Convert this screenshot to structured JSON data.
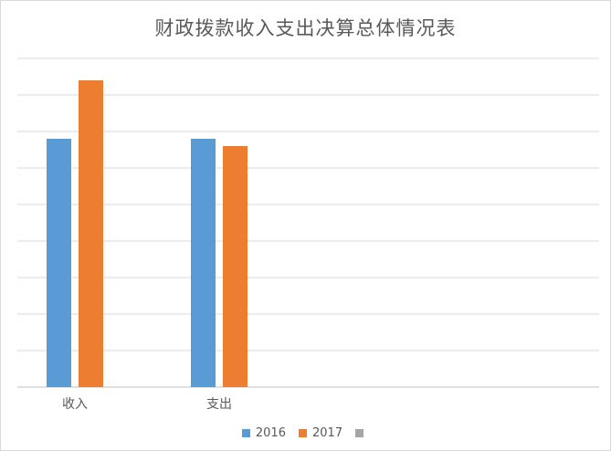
{
  "chart_data": {
    "type": "bar",
    "title": "财政拨款收入支出决算总体情况表",
    "categories": [
      "收入",
      "支出"
    ],
    "series": [
      {
        "name": "2016",
        "color": "#5b9bd5",
        "values": [
          34,
          34
        ]
      },
      {
        "name": "2017",
        "color": "#ed7d31",
        "values": [
          42,
          33
        ]
      },
      {
        "name": "",
        "color": "#a5a5a5",
        "values": [
          0,
          0
        ]
      }
    ],
    "ylim": [
      0,
      45
    ],
    "y_tick_step": 5,
    "y_tick_labels_visible": false,
    "grid": true,
    "legend_position": "bottom"
  }
}
